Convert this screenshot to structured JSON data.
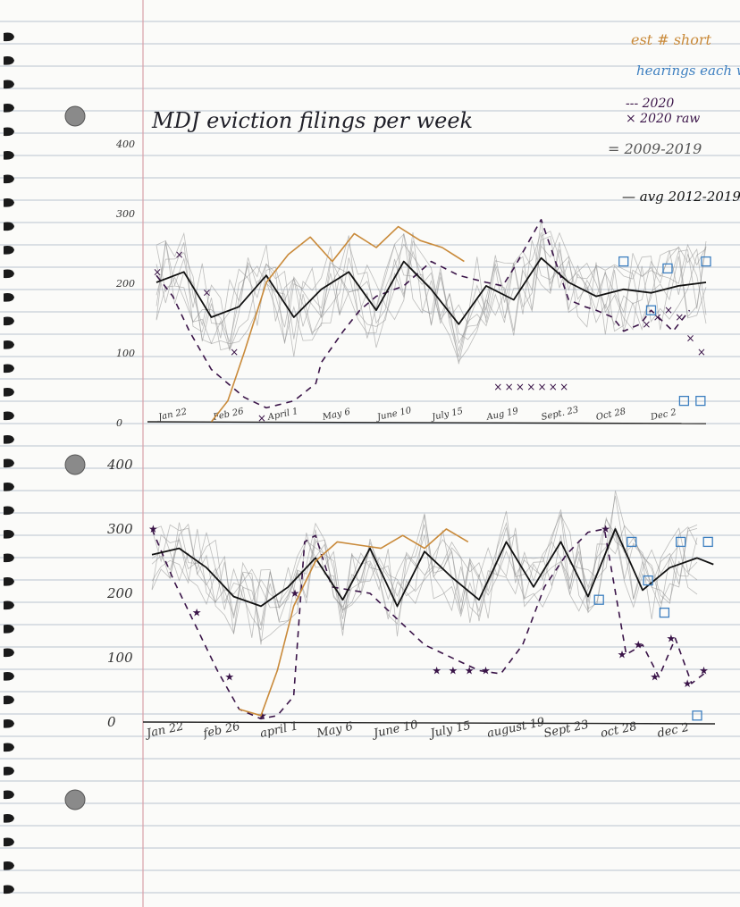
{
  "page": {
    "title": "MDJ eviction filings per week",
    "legend": [
      {
        "key": "orange",
        "label": "est # short",
        "color": "#c98a3a"
      },
      {
        "key": "blue",
        "label": "hearings each week",
        "color": "#3d7fc0"
      },
      {
        "key": "dashed",
        "label": "--- 2020",
        "color": "#3a1448"
      },
      {
        "key": "raw",
        "label": "× 2020 raw",
        "color": "#3a1448"
      },
      {
        "key": "gray",
        "label": "= 2009-2019",
        "color": "#8a8a8a"
      },
      {
        "key": "black",
        "label": "— avg 2012-2019",
        "color": "#111111"
      }
    ],
    "colors": {
      "line2020": "#3a1448",
      "avg": "#111111",
      "history": "#8c8c8c",
      "estShort": "#c98a3a",
      "hearings": "#3d7fc0",
      "ruled": "#b9c3cf",
      "margin": "#d9a0a8"
    }
  },
  "chart_data": [
    {
      "type": "line",
      "ylim": [
        0,
        400
      ],
      "ytick_labels": [
        "400",
        "300",
        "200",
        "100",
        "0"
      ],
      "xtick_labels": [
        "Jan 22",
        "Feb 26",
        "April 1",
        "May 6",
        "June 10",
        "July 15",
        "Aug 19",
        "Sept. 23",
        "Oct 28",
        "Dec 2"
      ],
      "series": [
        {
          "name": "2020",
          "style": "dashed",
          "x": [
            0,
            0.3,
            0.6,
            1.0,
            1.6,
            2.0,
            2.5,
            2.9,
            3.0,
            3.4,
            3.7,
            4.0,
            4.5,
            5.0,
            5.5,
            6.0,
            6.3,
            6.5,
            7.0,
            7.5,
            7.8,
            8.0,
            8.3,
            8.5,
            8.8,
            9.0,
            9.4,
            9.7
          ],
          "values": [
            210,
            180,
            130,
            75,
            35,
            20,
            30,
            55,
            85,
            130,
            160,
            180,
            195,
            230,
            210,
            200,
            195,
            220,
            290,
            175,
            165,
            160,
            150,
            130,
            140,
            160,
            130,
            160
          ]
        },
        {
          "name": "2020 raw",
          "style": "x-markers",
          "x": [
            0,
            0.4,
            0.9,
            1.4,
            1.9,
            6.2,
            6.4,
            6.6,
            6.8,
            7.0,
            7.2,
            7.4,
            8.9,
            9.1,
            9.3,
            9.5,
            9.7,
            9.9
          ],
          "values": [
            215,
            240,
            185,
            100,
            5,
            50,
            50,
            50,
            50,
            50,
            50,
            50,
            140,
            150,
            160,
            150,
            120,
            100
          ]
        },
        {
          "name": "avg 2012-2019",
          "style": "solid",
          "x": [
            0,
            0.5,
            1.0,
            1.5,
            2.0,
            2.5,
            3.0,
            3.5,
            4.0,
            4.5,
            5.0,
            5.5,
            6.0,
            6.5,
            7.0,
            7.5,
            8.0,
            8.5,
            9.0,
            9.5,
            10.0
          ],
          "values": [
            200,
            215,
            150,
            165,
            210,
            150,
            190,
            215,
            160,
            230,
            190,
            140,
            195,
            175,
            235,
            200,
            180,
            190,
            185,
            195,
            200
          ]
        },
        {
          "name": "est # short",
          "style": "solid",
          "x": [
            1.0,
            1.3,
            1.6,
            2.0,
            2.4,
            2.8,
            3.2,
            3.6,
            4.0,
            4.4,
            4.8,
            5.2,
            5.6
          ],
          "values": [
            0,
            30,
            100,
            200,
            240,
            265,
            230,
            270,
            250,
            280,
            260,
            250,
            230
          ]
        },
        {
          "name": "hearings each week",
          "style": "box-markers",
          "x": [
            8.5,
            9.0,
            9.3,
            9.6,
            9.9,
            10.0
          ],
          "values": [
            230,
            160,
            220,
            30,
            30,
            230
          ]
        }
      ]
    },
    {
      "type": "line",
      "ylim": [
        0,
        400
      ],
      "ytick_labels": [
        "400",
        "300",
        "200",
        "100",
        "0"
      ],
      "xtick_labels": [
        "Jan 22",
        "feb 26",
        "april 1",
        "May 6",
        "June 10",
        "July 15",
        "august 19",
        "Sept 23",
        "oct 28",
        "dec 2"
      ],
      "series": [
        {
          "name": "2020",
          "style": "dashed",
          "x": [
            0,
            0.4,
            0.8,
            1.2,
            1.6,
            2.0,
            2.3,
            2.6,
            2.8,
            3.0,
            3.3,
            4.0,
            5.0,
            6.0,
            6.4,
            6.8,
            7.2,
            7.6,
            8.0,
            8.3,
            8.7,
            9.0,
            9.3,
            9.6,
            9.9,
            10.2
          ],
          "values": [
            300,
            220,
            150,
            80,
            20,
            5,
            10,
            40,
            280,
            290,
            210,
            200,
            120,
            80,
            75,
            120,
            210,
            260,
            295,
            300,
            105,
            120,
            70,
            130,
            60,
            80
          ]
        },
        {
          "name": "2020 raw",
          "style": "star-markers",
          "x": [
            0,
            0.8,
            1.4,
            2.0,
            2.6,
            5.2,
            5.5,
            5.8,
            6.1,
            8.3,
            8.6,
            8.9,
            9.2,
            9.5,
            9.8,
            10.1
          ],
          "values": [
            300,
            170,
            70,
            10,
            200,
            80,
            80,
            80,
            80,
            300,
            105,
            120,
            70,
            130,
            60,
            80
          ]
        },
        {
          "name": "avg 2012-2019",
          "style": "solid",
          "x": [
            0,
            0.5,
            1.0,
            1.5,
            2.0,
            2.5,
            3.0,
            3.5,
            4.0,
            4.5,
            5.0,
            5.5,
            6.0,
            6.5,
            7.0,
            7.5,
            8.0,
            8.5,
            9.0,
            9.5,
            10.0,
            10.3
          ],
          "values": [
            260,
            270,
            240,
            195,
            180,
            210,
            255,
            190,
            270,
            180,
            265,
            225,
            190,
            280,
            210,
            280,
            195,
            300,
            205,
            240,
            255,
            245
          ]
        },
        {
          "name": "est # short",
          "style": "solid",
          "x": [
            1.6,
            2.0,
            2.3,
            2.6,
            3.0,
            3.4,
            3.8,
            4.2,
            4.6,
            5.0,
            5.4,
            5.8
          ],
          "values": [
            20,
            10,
            80,
            180,
            250,
            280,
            275,
            270,
            290,
            270,
            300,
            280
          ]
        },
        {
          "name": "hearings each week",
          "style": "box-markers",
          "x": [
            8.2,
            8.8,
            9.1,
            9.4,
            9.7,
            10.0,
            10.2
          ],
          "values": [
            190,
            280,
            220,
            170,
            280,
            10,
            280
          ]
        }
      ]
    }
  ]
}
